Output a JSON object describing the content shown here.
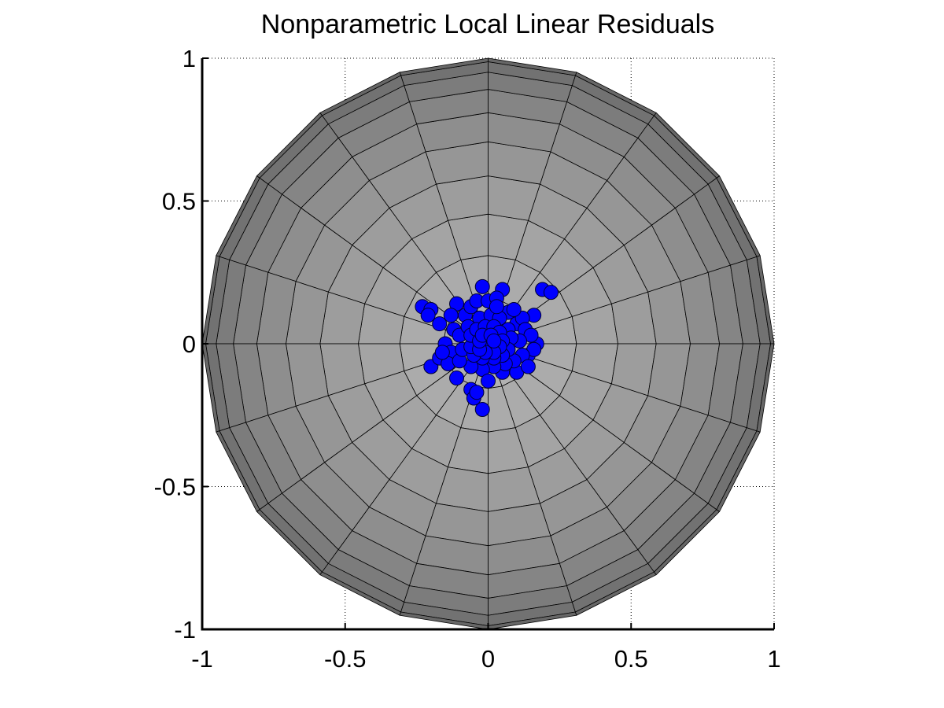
{
  "chart_data": {
    "type": "scatter",
    "title": "Nonparametric Local Linear Residuals",
    "xlabel": "",
    "ylabel": "",
    "xlim": [
      -1,
      1
    ],
    "ylim": [
      -1,
      1
    ],
    "xticks": [
      -1,
      -0.5,
      0,
      0.5,
      1
    ],
    "yticks": [
      -1,
      -0.5,
      0,
      0.5,
      1
    ],
    "xtick_labels": [
      "-1",
      "-0.5",
      "0",
      "0.5",
      "1"
    ],
    "ytick_labels": [
      "-1",
      "-0.5",
      "0",
      "0.5",
      "1"
    ],
    "grid": "dotted",
    "sphere": {
      "radius": 1,
      "meridians": 20,
      "parallels": 10,
      "edge_color": "#000000",
      "shade_colors": [
        "#b1b1b1",
        "#ababab",
        "#a4a4a4",
        "#9d9d9d",
        "#969696",
        "#8e8e8e",
        "#858585",
        "#7c7c7c",
        "#727272",
        "#676767"
      ]
    },
    "marker_color": "#0000ff",
    "marker_edge": "#000033",
    "points": [
      {
        "x": 0.0,
        "y": 0.0
      },
      {
        "x": -0.23,
        "y": 0.13
      },
      {
        "x": -0.2,
        "y": 0.12
      },
      {
        "x": -0.21,
        "y": 0.1
      },
      {
        "x": -0.11,
        "y": 0.14
      },
      {
        "x": -0.02,
        "y": 0.2
      },
      {
        "x": 0.05,
        "y": 0.19
      },
      {
        "x": 0.19,
        "y": 0.19
      },
      {
        "x": 0.22,
        "y": 0.18
      },
      {
        "x": 0.16,
        "y": 0.1
      },
      {
        "x": -0.2,
        "y": -0.08
      },
      {
        "x": -0.17,
        "y": -0.05
      },
      {
        "x": -0.11,
        "y": -0.12
      },
      {
        "x": -0.06,
        "y": -0.16
      },
      {
        "x": -0.05,
        "y": -0.19
      },
      {
        "x": -0.02,
        "y": -0.23
      },
      {
        "x": -0.04,
        "y": -0.17
      },
      {
        "x": 0.05,
        "y": -0.1
      },
      {
        "x": 0.1,
        "y": -0.1
      },
      {
        "x": 0.14,
        "y": -0.04
      },
      {
        "x": 0.17,
        "y": 0.0
      },
      {
        "x": 0.16,
        "y": -0.02
      },
      {
        "x": -0.15,
        "y": 0.0
      },
      {
        "x": -0.13,
        "y": -0.03
      },
      {
        "x": -0.12,
        "y": 0.05
      },
      {
        "x": -0.14,
        "y": -0.07
      },
      {
        "x": -0.08,
        "y": 0.1
      },
      {
        "x": -0.06,
        "y": 0.13
      },
      {
        "x": -0.04,
        "y": 0.15
      },
      {
        "x": 0.0,
        "y": 0.15
      },
      {
        "x": 0.03,
        "y": 0.16
      },
      {
        "x": 0.07,
        "y": 0.11
      },
      {
        "x": 0.1,
        "y": 0.07
      },
      {
        "x": 0.12,
        "y": 0.09
      },
      {
        "x": 0.13,
        "y": 0.05
      },
      {
        "x": 0.15,
        "y": 0.03
      },
      {
        "x": 0.11,
        "y": 0.01
      },
      {
        "x": 0.12,
        "y": -0.04
      },
      {
        "x": 0.09,
        "y": -0.06
      },
      {
        "x": 0.06,
        "y": -0.07
      },
      {
        "x": 0.02,
        "y": -0.08
      },
      {
        "x": -0.02,
        "y": -0.09
      },
      {
        "x": -0.06,
        "y": -0.08
      },
      {
        "x": -0.1,
        "y": -0.06
      },
      {
        "x": -0.09,
        "y": -0.02
      },
      {
        "x": -0.1,
        "y": 0.03
      },
      {
        "x": -0.07,
        "y": 0.06
      },
      {
        "x": -0.03,
        "y": 0.09
      },
      {
        "x": 0.01,
        "y": 0.1
      },
      {
        "x": 0.04,
        "y": 0.09
      },
      {
        "x": 0.07,
        "y": 0.05
      },
      {
        "x": 0.08,
        "y": 0.02
      },
      {
        "x": 0.07,
        "y": -0.02
      },
      {
        "x": 0.05,
        "y": -0.04
      },
      {
        "x": 0.02,
        "y": -0.05
      },
      {
        "x": -0.02,
        "y": -0.05
      },
      {
        "x": -0.05,
        "y": -0.04
      },
      {
        "x": -0.06,
        "y": -0.01
      },
      {
        "x": -0.06,
        "y": 0.03
      },
      {
        "x": -0.04,
        "y": 0.05
      },
      {
        "x": -0.01,
        "y": 0.06
      },
      {
        "x": 0.02,
        "y": 0.06
      },
      {
        "x": 0.04,
        "y": 0.04
      },
      {
        "x": 0.05,
        "y": 0.01
      },
      {
        "x": 0.04,
        "y": -0.01
      },
      {
        "x": 0.02,
        "y": -0.03
      },
      {
        "x": -0.01,
        "y": -0.03
      },
      {
        "x": -0.03,
        "y": -0.02
      },
      {
        "x": -0.03,
        "y": 0.01
      },
      {
        "x": -0.02,
        "y": 0.03
      },
      {
        "x": 0.01,
        "y": 0.03
      },
      {
        "x": 0.02,
        "y": 0.01
      },
      {
        "x": -0.17,
        "y": 0.07
      },
      {
        "x": 0.09,
        "y": 0.12
      },
      {
        "x": -0.13,
        "y": 0.1
      },
      {
        "x": 0.14,
        "y": -0.08
      },
      {
        "x": -0.16,
        "y": -0.03
      },
      {
        "x": 0.0,
        "y": -0.13
      },
      {
        "x": 0.03,
        "y": 0.13
      }
    ]
  }
}
